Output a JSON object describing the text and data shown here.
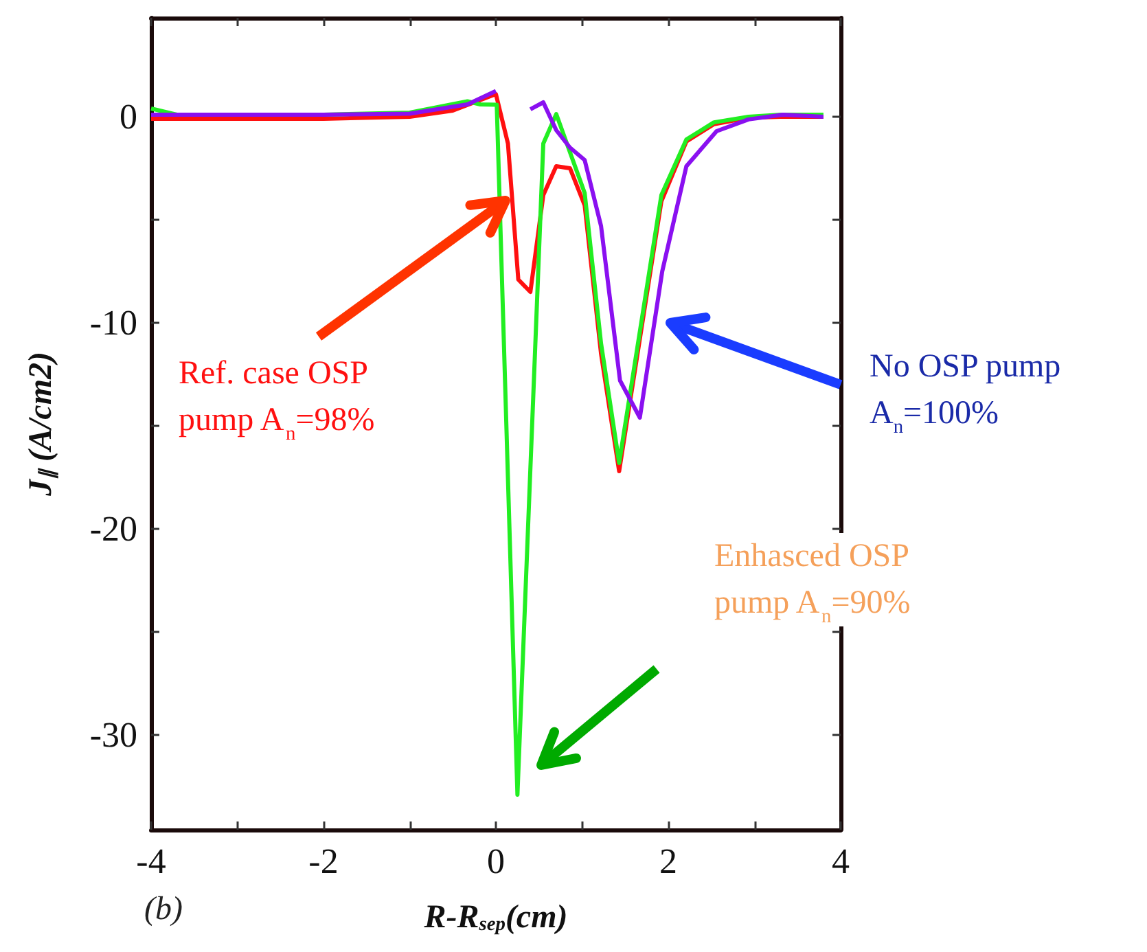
{
  "chart_data": {
    "type": "line",
    "xlabel": "R-R$_{sep}$(cm)",
    "ylabel": "J$_{∥}$ (A/cm2)",
    "xlim": [
      -4,
      4.0
    ],
    "xticks": [
      -4,
      {
        "value": -3,
        "label": null
      },
      -2,
      {
        "value": -1,
        "label": null
      },
      0,
      {
        "value": 1,
        "label": null
      },
      2,
      {
        "value": 3,
        "label": null
      },
      4
    ],
    "ylim": [
      -34.6,
      4.8
    ],
    "yticks": [
      {
        "value": -30,
        "label": "-30"
      },
      {
        "value": -25,
        "label": null
      },
      {
        "value": -20,
        "label": "-20"
      },
      {
        "value": -15,
        "label": null
      },
      {
        "value": -10,
        "label": "-10"
      },
      {
        "value": -5,
        "label": null
      },
      0
    ],
    "marker": "none",
    "line_style": "solid",
    "series": [
      {
        "color": "#ff1010",
        "x": [
          -4,
          -3,
          -2,
          -1,
          -0.5,
          0,
          0.14,
          0.26,
          0.4,
          0.55,
          0.7,
          0.86,
          1.03,
          1.22,
          1.43,
          1.92,
          2.21,
          2.53,
          2.93,
          3.3,
          3.8
        ],
        "values": [
          -0.1,
          -0.1,
          -0.1,
          0,
          0.3,
          1.1,
          -1.3,
          -7.9,
          -8.5,
          -3.8,
          -2.4,
          -2.5,
          -4.3,
          -11.5,
          -17.2,
          -4.1,
          -1.2,
          -0.36,
          -0.05,
          0,
          0
        ]
      },
      {
        "color": "#22ee22",
        "x": [
          -4,
          -3.7,
          -3,
          -2,
          -1,
          -0.33,
          -0.18,
          0.01,
          0.25,
          0.55,
          0.7,
          1.03,
          1.22,
          1.43,
          1.92,
          2.21,
          2.53,
          2.93,
          3.3,
          3.8
        ],
        "values": [
          0.4,
          0.1,
          0.1,
          0.1,
          0.2,
          0.75,
          0.6,
          0.58,
          -32.9,
          -1.3,
          0.13,
          -3.7,
          -11,
          -16.8,
          -3.8,
          -1.1,
          -0.27,
          0,
          0.1,
          0.1
        ]
      },
      {
        "color": "#8a10f0",
        "x": [
          -4,
          -3,
          -2,
          -1,
          -0.33,
          0,
          0.14,
          0.25,
          0.4,
          0.55,
          0.7,
          0.86,
          1.03,
          1.22,
          1.44,
          1.67,
          1.93,
          2.21,
          2.56,
          2.93,
          3.33,
          3.8
        ],
        "values": [
          0.1,
          0.1,
          0.1,
          0.15,
          0.6,
          1.25,
          null,
          null,
          0.36,
          0.7,
          -0.65,
          -1.5,
          -2.1,
          -5.3,
          -12.8,
          -14.6,
          -7.5,
          -2.4,
          -0.7,
          -0.13,
          0.1,
          0
        ]
      }
    ],
    "annotations": [
      "Ref. case OSP\npump A$_{n}$=98%",
      "No OSP pump\nA$_{n}$=100%",
      "Enhasced OSP\npump A$_{n}$=90%",
      "(b)"
    ]
  }
}
